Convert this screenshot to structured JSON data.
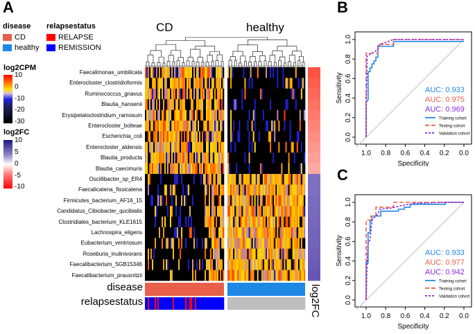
{
  "panels": {
    "a": "A",
    "b": "B",
    "c": "C"
  },
  "legend": {
    "disease": {
      "title": "disease",
      "items": [
        {
          "label": "CD",
          "color": "#e8604a"
        },
        {
          "label": "healthy",
          "color": "#1e88e5"
        }
      ]
    },
    "relapse": {
      "title": "relapsestatus",
      "items": [
        {
          "label": "RELAPSE",
          "color": "#ff0000"
        },
        {
          "label": "REMISSION",
          "color": "#0000ff"
        }
      ]
    },
    "log2cpm": {
      "title": "log2CPM",
      "ticks": [
        "10",
        "0",
        "-10",
        "-20",
        "-30"
      ]
    },
    "log2fc": {
      "title": "log2FC",
      "ticks": [
        "10",
        "5",
        "0",
        "-5",
        "-10"
      ]
    }
  },
  "heatmap": {
    "groups": [
      "CD",
      "healthy"
    ],
    "species": [
      "Faecalimonas_umbilicata",
      "Enterocloster_clostridioformis",
      "Ruminococcus_gnavus",
      "Blautia_hansenii",
      "Erysipelatoclostridium_ramosum",
      "Enterocloster_bolteae",
      "Escherichia_coli",
      "Enterocloster_aldensis",
      "Blautia_producta",
      "Blautia_caecimuris",
      "Oscillibacter_sp_ER4",
      "Faecalicatena_fissicatena",
      "Firmicutes_bacterium_AF16_15",
      "Candidatus_Cibiobacter_qucibialis",
      "Clostridiales_bacterium_KLE1615",
      "Lachnospira_eligens",
      "Eubacterium_ventriosum",
      "Roseburia_inulinivorans",
      "Faecalibacterium_SGB15346",
      "Faecalibacterium_prausnitzii"
    ],
    "log2fc": [
      -9,
      -8.5,
      -8,
      -7.5,
      -7,
      -6.5,
      -6,
      -5.5,
      -5,
      -4.5,
      7,
      7,
      7.2,
      7.3,
      7.4,
      7.5,
      7.6,
      7.8,
      8,
      8.2
    ],
    "annotation_labels": {
      "disease": "disease",
      "relapse": "relapsestatus",
      "log2fc": "log2FC"
    },
    "relapse_colors": {
      "relapse": "#ff0000",
      "remission": "#0000ff",
      "na": "#bebebe"
    }
  },
  "chart_data": [
    {
      "type": "line",
      "panel": "B",
      "xlabel": "Specificity",
      "ylabel": "Sensitivity",
      "xlim": [
        1.1,
        -0.1
      ],
      "ylim": [
        0,
        1
      ],
      "xticks": [
        "1.0",
        "0.8",
        "0.6",
        "0.4",
        "0.2",
        "0.0"
      ],
      "yticks": [
        "0.0",
        "0.2",
        "0.4",
        "0.6",
        "0.8",
        "1.0"
      ],
      "legend_position": "bottom-right",
      "series": [
        {
          "name": "Training cohort",
          "auc": "AUC: 0.933",
          "color": "#1e88e5",
          "dash": "solid",
          "x": [
            1,
            1,
            0.98,
            0.98,
            0.96,
            0.96,
            0.94,
            0.94,
            0.92,
            0.92,
            0.9,
            0.9,
            0.88,
            0.88,
            0.72,
            0.72,
            0
          ],
          "y": [
            0,
            0.36,
            0.38,
            0.67,
            0.67,
            0.71,
            0.71,
            0.75,
            0.75,
            0.78,
            0.78,
            0.82,
            0.82,
            0.93,
            0.93,
            0.98,
            0.98
          ]
        },
        {
          "name": "Testing cohort",
          "auc": "AUC: 0.975",
          "color": "#e8604a",
          "dash": "long",
          "x": [
            1,
            1,
            0.88,
            0.88,
            0.72,
            0.72,
            0
          ],
          "y": [
            0,
            0.86,
            0.86,
            0.95,
            0.95,
            1,
            1
          ]
        },
        {
          "name": "Validation cohort",
          "auc": "AUC: 0.969",
          "color": "#8a2be2",
          "dash": "short",
          "x": [
            1,
            1,
            0.99,
            0.96,
            0.92,
            0.88,
            0.86,
            0.8,
            0.72,
            0
          ],
          "y": [
            0,
            0.36,
            0.83,
            0.85,
            0.87,
            0.9,
            0.95,
            0.97,
            1,
            1
          ]
        }
      ]
    },
    {
      "type": "line",
      "panel": "C",
      "xlabel": "Specificity",
      "ylabel": "Sensitivity",
      "xlim": [
        1.1,
        -0.1
      ],
      "ylim": [
        0,
        1
      ],
      "xticks": [
        "1.0",
        "0.8",
        "0.6",
        "0.4",
        "0.2",
        "0.0"
      ],
      "yticks": [
        "0.0",
        "0.2",
        "0.4",
        "0.6",
        "0.8",
        "1.0"
      ],
      "legend_position": "bottom-right",
      "series": [
        {
          "name": "Training cohort",
          "auc": "AUC: 0.933",
          "color": "#1e88e5",
          "dash": "solid",
          "x": [
            1,
            1,
            0.98,
            0.98,
            0.96,
            0.96,
            0.94,
            0.94,
            0.85,
            0.85,
            0.67,
            0.67,
            0.61,
            0.61,
            0.55,
            0.55,
            0.19,
            0.19,
            0
          ],
          "y": [
            0,
            0.38,
            0.38,
            0.69,
            0.69,
            0.81,
            0.81,
            0.86,
            0.86,
            0.91,
            0.91,
            0.93,
            0.93,
            0.95,
            0.95,
            0.98,
            0.98,
            1,
            1
          ]
        },
        {
          "name": "Testing cohort",
          "auc": "AUC: 0.977",
          "color": "#e8604a",
          "dash": "long",
          "x": [
            1,
            1,
            0.95,
            0.95,
            0.9,
            0.9,
            0.72,
            0.72,
            0
          ],
          "y": [
            0,
            0.82,
            0.82,
            0.86,
            0.86,
            0.95,
            0.95,
            1,
            1
          ]
        },
        {
          "name": "Validation cohort",
          "auc": "AUC: 0.942",
          "color": "#8a2be2",
          "dash": "short",
          "x": [
            1,
            0.99,
            0.98,
            0.96,
            0.94,
            0.88,
            0.86,
            0.75,
            0.62,
            0.5,
            0.2,
            0
          ],
          "y": [
            0,
            0.38,
            0.58,
            0.62,
            0.82,
            0.88,
            0.93,
            0.94,
            0.97,
            0.99,
            1,
            1
          ]
        }
      ]
    }
  ]
}
